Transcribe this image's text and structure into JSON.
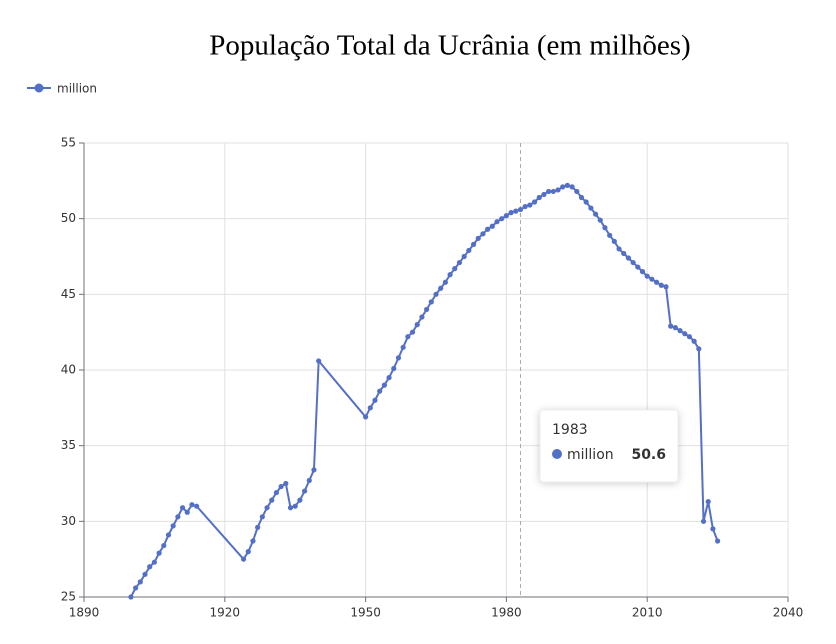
{
  "chart_data": {
    "type": "line",
    "title": "População Total da Ucrânia (em milhões)",
    "x": [
      1900,
      1901,
      1902,
      1903,
      1904,
      1905,
      1906,
      1907,
      1908,
      1909,
      1910,
      1911,
      1912,
      1913,
      1914,
      1924,
      1925,
      1926,
      1927,
      1928,
      1929,
      1930,
      1931,
      1932,
      1933,
      1934,
      1935,
      1936,
      1937,
      1938,
      1939,
      1940,
      1950,
      1951,
      1952,
      1953,
      1954,
      1955,
      1956,
      1957,
      1958,
      1959,
      1960,
      1961,
      1962,
      1963,
      1964,
      1965,
      1966,
      1967,
      1968,
      1969,
      1970,
      1971,
      1972,
      1973,
      1974,
      1975,
      1976,
      1977,
      1978,
      1979,
      1980,
      1981,
      1982,
      1983,
      1984,
      1985,
      1986,
      1987,
      1988,
      1989,
      1990,
      1991,
      1992,
      1993,
      1994,
      1995,
      1996,
      1997,
      1998,
      1999,
      2000,
      2001,
      2002,
      2003,
      2004,
      2005,
      2006,
      2007,
      2008,
      2009,
      2010,
      2011,
      2012,
      2013,
      2014,
      2015,
      2016,
      2017,
      2018,
      2019,
      2020,
      2021,
      2022,
      2023,
      2024,
      2025
    ],
    "series": [
      {
        "name": "million",
        "color": "#5470c6",
        "values": [
          25.0,
          25.6,
          26.0,
          26.5,
          27.0,
          27.3,
          27.9,
          28.4,
          29.1,
          29.7,
          30.3,
          30.9,
          30.6,
          31.1,
          31.0,
          27.5,
          28.0,
          28.7,
          29.6,
          30.3,
          30.9,
          31.4,
          31.9,
          32.3,
          32.5,
          30.9,
          31.0,
          31.4,
          32.0,
          32.7,
          33.4,
          40.6,
          36.9,
          37.5,
          38.0,
          38.6,
          39.0,
          39.5,
          40.1,
          40.8,
          41.5,
          42.2,
          42.5,
          43.0,
          43.5,
          44.0,
          44.5,
          45.0,
          45.4,
          45.8,
          46.3,
          46.7,
          47.1,
          47.5,
          47.9,
          48.3,
          48.7,
          49.0,
          49.3,
          49.5,
          49.8,
          50.0,
          50.2,
          50.4,
          50.5,
          50.6,
          50.8,
          50.9,
          51.1,
          51.4,
          51.6,
          51.8,
          51.8,
          51.9,
          52.1,
          52.2,
          52.1,
          51.8,
          51.4,
          51.1,
          50.7,
          50.3,
          49.9,
          49.4,
          48.9,
          48.5,
          48.0,
          47.7,
          47.4,
          47.1,
          46.8,
          46.5,
          46.2,
          46.0,
          45.8,
          45.6,
          45.5,
          42.9,
          42.8,
          42.6,
          42.4,
          42.2,
          41.9,
          41.4,
          30.0,
          31.3,
          29.5,
          28.7
        ]
      }
    ],
    "xlim": [
      1890,
      2040
    ],
    "xticks": [
      1890,
      1920,
      1950,
      1980,
      2010,
      2040
    ],
    "ylim": [
      25,
      55
    ],
    "yticks": [
      25,
      30,
      35,
      40,
      45,
      50,
      55
    ],
    "grid": true,
    "tooltip": {
      "x": 1983,
      "value": 50.6
    }
  }
}
